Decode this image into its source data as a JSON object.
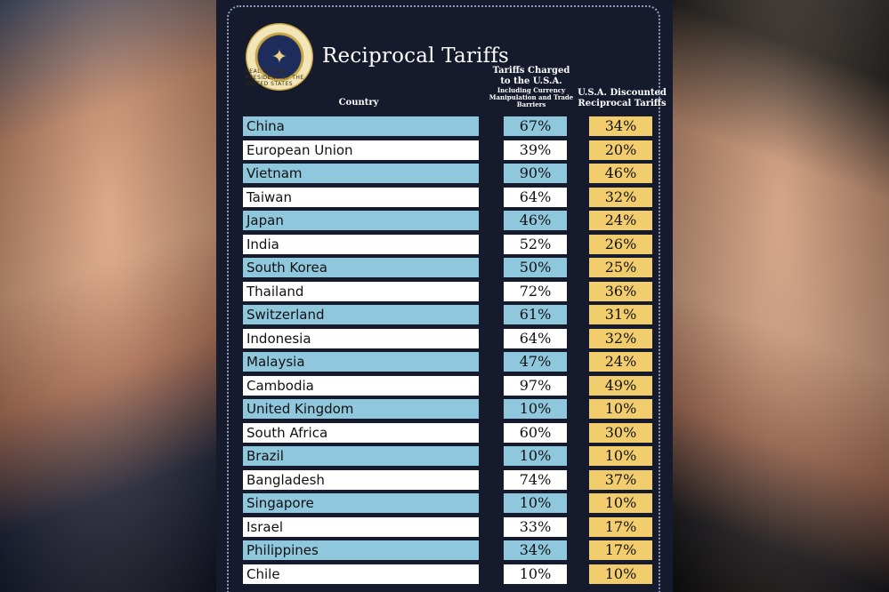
{
  "header": {
    "title": "Reciprocal Tariffs",
    "seal_text": "SEAL OF THE PRESIDENT OF THE UNITED STATES",
    "col_country": "Country",
    "col_charged_line1": "Tariffs Charged",
    "col_charged_line2": "to the U.S.A.",
    "col_charged_sub": "Including Currency Manipulation and Trade Barriers",
    "col_discount_line1": "U.S.A. Discounted",
    "col_discount_line2": "Reciprocal Tariffs"
  },
  "colors": {
    "panel_bg": "#151a2c",
    "row_blue": "#8fc7dc",
    "row_white": "#ffffff",
    "discount_gold": "#f2cd6e"
  },
  "rows": [
    {
      "country": "China",
      "charged": "67%",
      "discount": "34%"
    },
    {
      "country": "European Union",
      "charged": "39%",
      "discount": "20%"
    },
    {
      "country": "Vietnam",
      "charged": "90%",
      "discount": "46%"
    },
    {
      "country": "Taiwan",
      "charged": "64%",
      "discount": "32%"
    },
    {
      "country": "Japan",
      "charged": "46%",
      "discount": "24%"
    },
    {
      "country": "India",
      "charged": "52%",
      "discount": "26%"
    },
    {
      "country": "South Korea",
      "charged": "50%",
      "discount": "25%"
    },
    {
      "country": "Thailand",
      "charged": "72%",
      "discount": "36%"
    },
    {
      "country": "Switzerland",
      "charged": "61%",
      "discount": "31%"
    },
    {
      "country": "Indonesia",
      "charged": "64%",
      "discount": "32%"
    },
    {
      "country": "Malaysia",
      "charged": "47%",
      "discount": "24%"
    },
    {
      "country": "Cambodia",
      "charged": "97%",
      "discount": "49%"
    },
    {
      "country": "United Kingdom",
      "charged": "10%",
      "discount": "10%"
    },
    {
      "country": "South Africa",
      "charged": "60%",
      "discount": "30%"
    },
    {
      "country": "Brazil",
      "charged": "10%",
      "discount": "10%"
    },
    {
      "country": "Bangladesh",
      "charged": "74%",
      "discount": "37%"
    },
    {
      "country": "Singapore",
      "charged": "10%",
      "discount": "10%"
    },
    {
      "country": "Israel",
      "charged": "33%",
      "discount": "17%"
    },
    {
      "country": "Philippines",
      "charged": "34%",
      "discount": "17%"
    },
    {
      "country": "Chile",
      "charged": "10%",
      "discount": "10%"
    }
  ]
}
